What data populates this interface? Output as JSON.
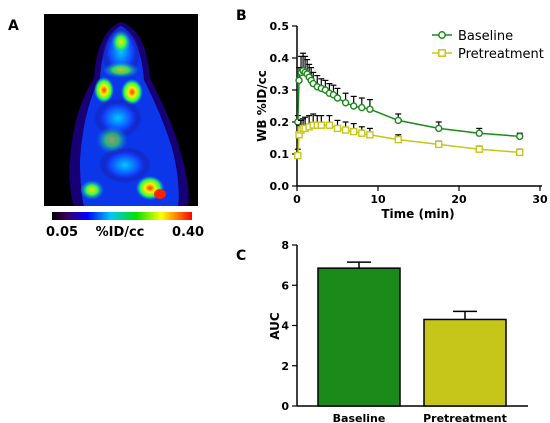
{
  "panels": {
    "a": "A",
    "b": "B",
    "c": "C"
  },
  "colorbar": {
    "min_label": "0.05",
    "unit_label": "%ID/cc",
    "max_label": "0.40"
  },
  "colors": {
    "baseline": "#1b8a1b",
    "pretreatment": "#c6c61a"
  },
  "chart_data": [
    {
      "type": "line",
      "xlabel": "Time (min)",
      "ylabel": "WB %ID/cc",
      "xlim": [
        0,
        30
      ],
      "ylim": [
        0,
        0.5
      ],
      "xticks": [
        0,
        10,
        20,
        30
      ],
      "yticks": [
        0.0,
        0.1,
        0.2,
        0.3,
        0.4,
        0.5
      ],
      "ytick_labels": [
        "0.0",
        "0.1",
        "0.2",
        "0.3",
        "0.4",
        "0.5"
      ],
      "legend_position": "top-right",
      "series": [
        {
          "name": "Baseline",
          "color": "#1b8a1b",
          "marker": "circle",
          "x": [
            0.1,
            0.25,
            0.5,
            0.75,
            1.0,
            1.25,
            1.5,
            1.75,
            2.0,
            2.5,
            3.0,
            3.5,
            4.0,
            4.5,
            5.0,
            6.0,
            7.0,
            8.0,
            9.0,
            12.5,
            17.5,
            22.5,
            27.5
          ],
          "y": [
            0.2,
            0.33,
            0.355,
            0.36,
            0.355,
            0.35,
            0.34,
            0.33,
            0.32,
            0.31,
            0.305,
            0.3,
            0.29,
            0.285,
            0.275,
            0.26,
            0.25,
            0.245,
            0.24,
            0.205,
            0.18,
            0.165,
            0.155
          ],
          "error": [
            0.02,
            0.04,
            0.05,
            0.055,
            0.05,
            0.045,
            0.04,
            0.04,
            0.035,
            0.035,
            0.03,
            0.03,
            0.03,
            0.03,
            0.03,
            0.03,
            0.03,
            0.03,
            0.03,
            0.02,
            0.02,
            0.015,
            0.01
          ]
        },
        {
          "name": "Pretreatment",
          "color": "#c6c61a",
          "marker": "square",
          "x": [
            0.1,
            0.25,
            0.5,
            0.75,
            1.0,
            1.5,
            2.0,
            2.5,
            3.0,
            4.0,
            5.0,
            6.0,
            7.0,
            8.0,
            9.0,
            12.5,
            17.5,
            22.5,
            27.5
          ],
          "y": [
            0.095,
            0.16,
            0.175,
            0.18,
            0.18,
            0.185,
            0.19,
            0.19,
            0.19,
            0.19,
            0.18,
            0.175,
            0.17,
            0.165,
            0.16,
            0.145,
            0.13,
            0.115,
            0.105
          ],
          "error": [
            0.02,
            0.03,
            0.03,
            0.03,
            0.035,
            0.035,
            0.035,
            0.03,
            0.03,
            0.03,
            0.025,
            0.025,
            0.025,
            0.02,
            0.02,
            0.015,
            0.01,
            0.01,
            0.01
          ]
        }
      ]
    },
    {
      "type": "bar",
      "ylabel": "AUC",
      "ylim": [
        0,
        8
      ],
      "yticks": [
        0,
        2,
        4,
        6,
        8
      ],
      "categories": [
        "Baseline",
        "Pretreatment"
      ],
      "values": [
        6.85,
        4.3
      ],
      "errors": [
        0.3,
        0.4
      ],
      "colors": [
        "#1b8a1b",
        "#c6c61a"
      ]
    }
  ]
}
